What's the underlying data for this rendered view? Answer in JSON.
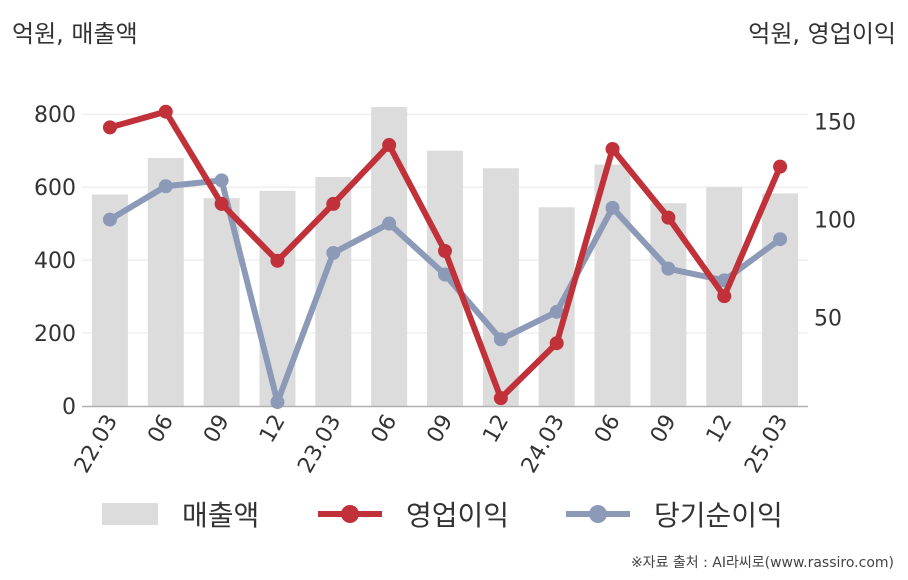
{
  "units": {
    "left": "억원, 매출액",
    "right": "억원, 영업이익"
  },
  "legend": {
    "sales": "매출액",
    "op": "영업이익",
    "net": "당기순이익"
  },
  "source": "※자료 출처 : AI라씨로(www.rassiro.com)",
  "colors": {
    "bar": "#dcdcdc",
    "op": "#c0313a",
    "net": "#8c9ab8",
    "grid": "#e8e8e8",
    "axis": "#b0b0b0"
  },
  "chart_data": {
    "type": "bar",
    "categories": [
      "22.03",
      "06",
      "09",
      "12",
      "23.03",
      "06",
      "09",
      "12",
      "24.03",
      "06",
      "09",
      "12",
      "25.03"
    ],
    "y_left_ticks": [
      "0",
      "200",
      "400",
      "600",
      "800"
    ],
    "y_right_ticks": [
      "50",
      "100",
      "150"
    ],
    "ylim_left": [
      0,
      850
    ],
    "ylim_right": [
      5,
      163
    ],
    "series": [
      {
        "name": "매출액",
        "type": "bar",
        "axis": "left",
        "values": [
          580,
          680,
          570,
          590,
          628,
          820,
          700,
          652,
          545,
          662,
          556,
          600,
          583
        ]
      },
      {
        "name": "영업이익",
        "type": "line",
        "axis": "right",
        "values": [
          147,
          155,
          108,
          79,
          108,
          138,
          84,
          9,
          37,
          136,
          101,
          61,
          127
        ]
      },
      {
        "name": "당기순이익",
        "type": "line",
        "axis": "right",
        "values": [
          100,
          117,
          120,
          7,
          83,
          98,
          72,
          39,
          53,
          106,
          75,
          69,
          90
        ]
      }
    ]
  }
}
